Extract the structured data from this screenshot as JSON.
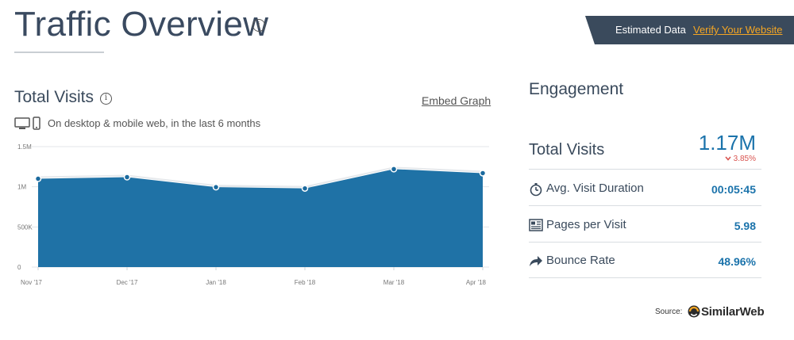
{
  "header": {
    "title": "Traffic Overview",
    "info_icon": "info-icon",
    "banner_text": "Estimated Data",
    "banner_link": "Verify Your Website"
  },
  "visits": {
    "title": "Total Visits",
    "info_icon": "info-icon",
    "embed_label": "Embed Graph",
    "device_icons": "desktop-mobile-icon",
    "device_text": "On desktop & mobile web, in the last 6 months"
  },
  "chart_data": {
    "type": "area",
    "categories": [
      "Nov '17",
      "Dec '17",
      "Jan '18",
      "Feb '18",
      "Mar '18",
      "Apr '18"
    ],
    "series": [
      {
        "values": [
          1100000,
          1120000,
          995000,
          980000,
          1220000,
          1170000
        ]
      }
    ],
    "y_ticks": [
      "1.5M",
      "1M",
      "500K",
      "0"
    ],
    "ylim": [
      0,
      1500000
    ],
    "grid": true,
    "colors": {
      "fill": "#1f72a6",
      "line": "#e6e9ec",
      "point": "#1b6a9e"
    }
  },
  "engagement": {
    "title": "Engagement",
    "total_visits_label": "Total Visits",
    "total_visits_value": "1.17M",
    "total_visits_change": "3.85%",
    "change_icon": "chevron-down-icon",
    "rows": [
      {
        "label": "Avg. Visit Duration",
        "value": "00:05:45",
        "icon": "stopwatch-icon"
      },
      {
        "label": "Pages per Visit",
        "value": "5.98",
        "icon": "pages-icon"
      },
      {
        "label": "Bounce Rate",
        "value": "48.96%",
        "icon": "bounce-arrow-icon"
      }
    ]
  },
  "source": {
    "label": "Source:",
    "brand": "SimilarWeb"
  },
  "colors": {
    "accent": "#1b73ab",
    "banner": "#3a4a5c",
    "link_orange": "#f5a623",
    "negative": "#d9534f"
  }
}
